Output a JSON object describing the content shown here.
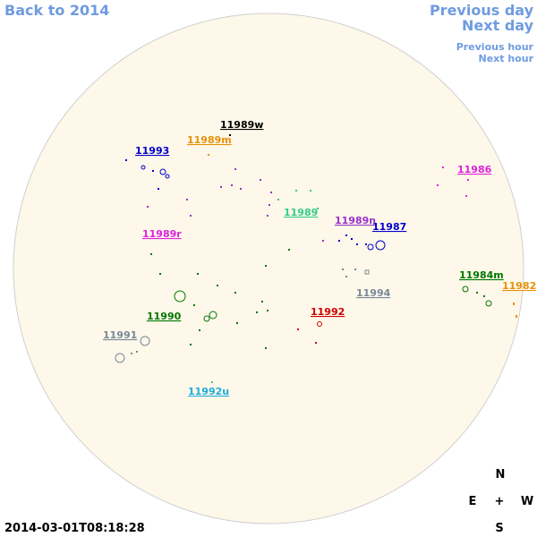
{
  "nav": {
    "back": "Back to 2014",
    "previous_day": "Previous day",
    "next_day": "Next day",
    "previous_hour": "Previous hour",
    "next_hour": "Next hour"
  },
  "regions": [
    {
      "label": "11989w",
      "color": "#000000"
    },
    {
      "label": "11989m",
      "color": "#e8900c"
    },
    {
      "label": "11993",
      "color": "#0000cc"
    },
    {
      "label": "11986",
      "color": "#dd22dd"
    },
    {
      "label": "11989",
      "color": "#33cc88"
    },
    {
      "label": "11989n",
      "color": "#9933cc"
    },
    {
      "label": "11987",
      "color": "#0000cc"
    },
    {
      "label": "11989r",
      "color": "#dd22dd"
    },
    {
      "label": "11984m",
      "color": "#007700"
    },
    {
      "label": "11982",
      "color": "#e8900c"
    },
    {
      "label": "11994",
      "color": "#778899"
    },
    {
      "label": "11992",
      "color": "#cc0000"
    },
    {
      "label": "11990",
      "color": "#007700"
    },
    {
      "label": "11991",
      "color": "#778899"
    },
    {
      "label": "11992u",
      "color": "#22aadd"
    }
  ],
  "timestamp": "2014-03-01T08:18:28",
  "compass": {
    "north": "N",
    "east": "E",
    "center": "+",
    "west": "W",
    "south": "S"
  }
}
